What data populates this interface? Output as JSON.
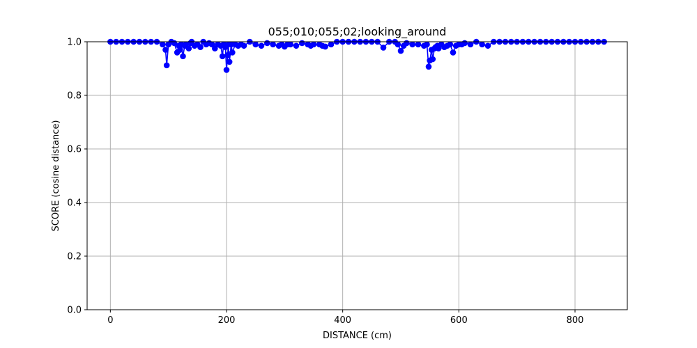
{
  "chart_data": {
    "type": "line",
    "title": "055;010;055;02;looking_around",
    "xlabel": "DISTANCE (cm)",
    "ylabel": "SCORE (cosine distance)",
    "xlim": [
      -40,
      890
    ],
    "ylim": [
      0.0,
      1.0
    ],
    "x_ticks": [
      0,
      200,
      400,
      600,
      800
    ],
    "x_tick_labels": [
      "0",
      "200",
      "400",
      "600",
      "800"
    ],
    "y_ticks": [
      0.0,
      0.2,
      0.4,
      0.6,
      0.8,
      1.0
    ],
    "y_tick_labels": [
      "0.0",
      "0.2",
      "0.4",
      "0.6",
      "0.8",
      "1.0"
    ],
    "grid": true,
    "legend": "none",
    "marker": "circle",
    "series": [
      {
        "color": "#0000ff",
        "x": [
          0,
          10,
          20,
          30,
          40,
          50,
          60,
          70,
          80,
          90,
          95,
          97,
          100,
          105,
          110,
          115,
          118,
          120,
          122,
          125,
          128,
          130,
          135,
          138,
          140,
          145,
          150,
          155,
          160,
          165,
          170,
          175,
          180,
          185,
          190,
          193,
          195,
          198,
          200,
          202,
          203,
          205,
          208,
          210,
          215,
          220,
          225,
          230,
          240,
          250,
          260,
          270,
          280,
          290,
          295,
          300,
          305,
          310,
          320,
          330,
          340,
          345,
          350,
          360,
          365,
          370,
          380,
          390,
          400,
          410,
          420,
          430,
          440,
          450,
          460,
          470,
          480,
          490,
          495,
          500,
          505,
          510,
          520,
          530,
          540,
          545,
          548,
          550,
          553,
          555,
          558,
          560,
          563,
          565,
          570,
          575,
          580,
          585,
          590,
          595,
          600,
          605,
          610,
          620,
          630,
          640,
          650,
          660,
          670,
          680,
          690,
          700,
          710,
          720,
          730,
          740,
          750,
          760,
          770,
          780,
          790,
          800,
          810,
          820,
          830,
          840,
          850
        ],
        "y": [
          1.0,
          1.0,
          1.0,
          1.0,
          1.0,
          1.0,
          1.0,
          1.0,
          1.0,
          0.99,
          0.97,
          0.912,
          0.99,
          1.0,
          0.995,
          0.96,
          0.985,
          0.97,
          0.99,
          0.946,
          0.985,
          0.99,
          0.975,
          0.995,
          1.0,
          0.985,
          0.99,
          0.98,
          1.0,
          0.99,
          0.995,
          0.99,
          0.975,
          0.99,
          0.985,
          0.946,
          0.99,
          0.98,
          0.895,
          0.95,
          0.99,
          0.925,
          0.99,
          0.96,
          0.99,
          0.985,
          0.99,
          0.985,
          1.0,
          0.99,
          0.985,
          0.995,
          0.99,
          0.985,
          0.99,
          0.982,
          0.99,
          0.99,
          0.985,
          0.995,
          0.99,
          0.985,
          0.99,
          0.99,
          0.985,
          0.982,
          0.99,
          1.0,
          1.0,
          1.0,
          1.0,
          1.0,
          1.0,
          1.0,
          1.0,
          0.978,
          1.0,
          1.0,
          0.99,
          0.966,
          0.985,
          0.995,
          0.99,
          0.99,
          0.985,
          0.99,
          0.907,
          0.93,
          0.97,
          0.935,
          0.975,
          0.98,
          0.985,
          0.975,
          0.99,
          0.98,
          0.985,
          0.99,
          0.96,
          0.985,
          0.99,
          0.99,
          0.995,
          0.99,
          1.0,
          0.99,
          0.985,
          1.0,
          1.0,
          1.0,
          1.0,
          1.0,
          1.0,
          1.0,
          1.0,
          1.0,
          1.0,
          1.0,
          1.0,
          1.0,
          1.0,
          1.0,
          1.0,
          1.0,
          1.0,
          1.0,
          1.0
        ]
      }
    ]
  }
}
